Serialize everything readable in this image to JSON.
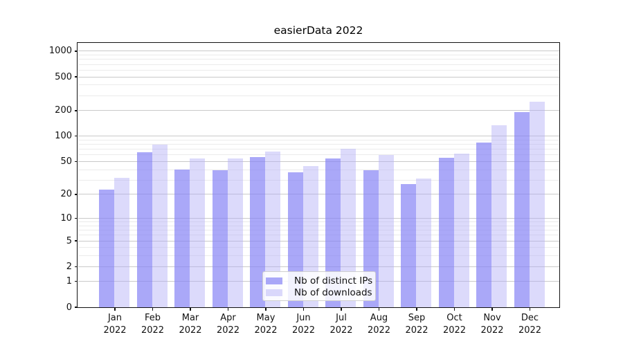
{
  "title": "easierData 2022",
  "chart_data": {
    "type": "bar",
    "title": "easierData 2022",
    "xlabel": "",
    "ylabel": "",
    "categories": [
      "Jan 2022",
      "Feb 2022",
      "Mar 2022",
      "Apr 2022",
      "May 2022",
      "Jun 2022",
      "Jul 2022",
      "Aug 2022",
      "Sep 2022",
      "Oct 2022",
      "Nov 2022",
      "Dec 2022"
    ],
    "x_tick_months": [
      "Jan",
      "Feb",
      "Mar",
      "Apr",
      "May",
      "Jun",
      "Jul",
      "Aug",
      "Sep",
      "Oct",
      "Nov",
      "Dec"
    ],
    "x_tick_year": "2022",
    "series": [
      {
        "name": "Nb of distinct IPs",
        "color": "#8683F5",
        "alpha": 0.7,
        "values": [
          23,
          65,
          40,
          39,
          56,
          37,
          54,
          39,
          27,
          55,
          84,
          193
        ]
      },
      {
        "name": "Nb of downloads",
        "color": "#B1AEF6",
        "alpha": 0.45,
        "values": [
          32,
          79,
          54,
          54,
          66,
          44,
          71,
          60,
          31,
          62,
          135,
          255
        ]
      }
    ],
    "yscale": "symlog (y ~ ln(1+v))",
    "ylim": [
      0,
      1250
    ],
    "y_major_ticks": [
      0,
      1,
      2,
      5,
      10,
      20,
      50,
      100,
      200,
      500,
      1000
    ],
    "y_minor_ticks": [
      3,
      4,
      6,
      7,
      8,
      9,
      30,
      40,
      60,
      70,
      80,
      90,
      300,
      400,
      600,
      700,
      800,
      900
    ],
    "grid": "horizontal, major and minor",
    "legend_position": "lower center"
  },
  "colors": {
    "major_grid": "#c9c9c9",
    "minor_grid": "#ebebeb",
    "spine": "#111111",
    "text": "#111111",
    "background": "#ffffff"
  }
}
